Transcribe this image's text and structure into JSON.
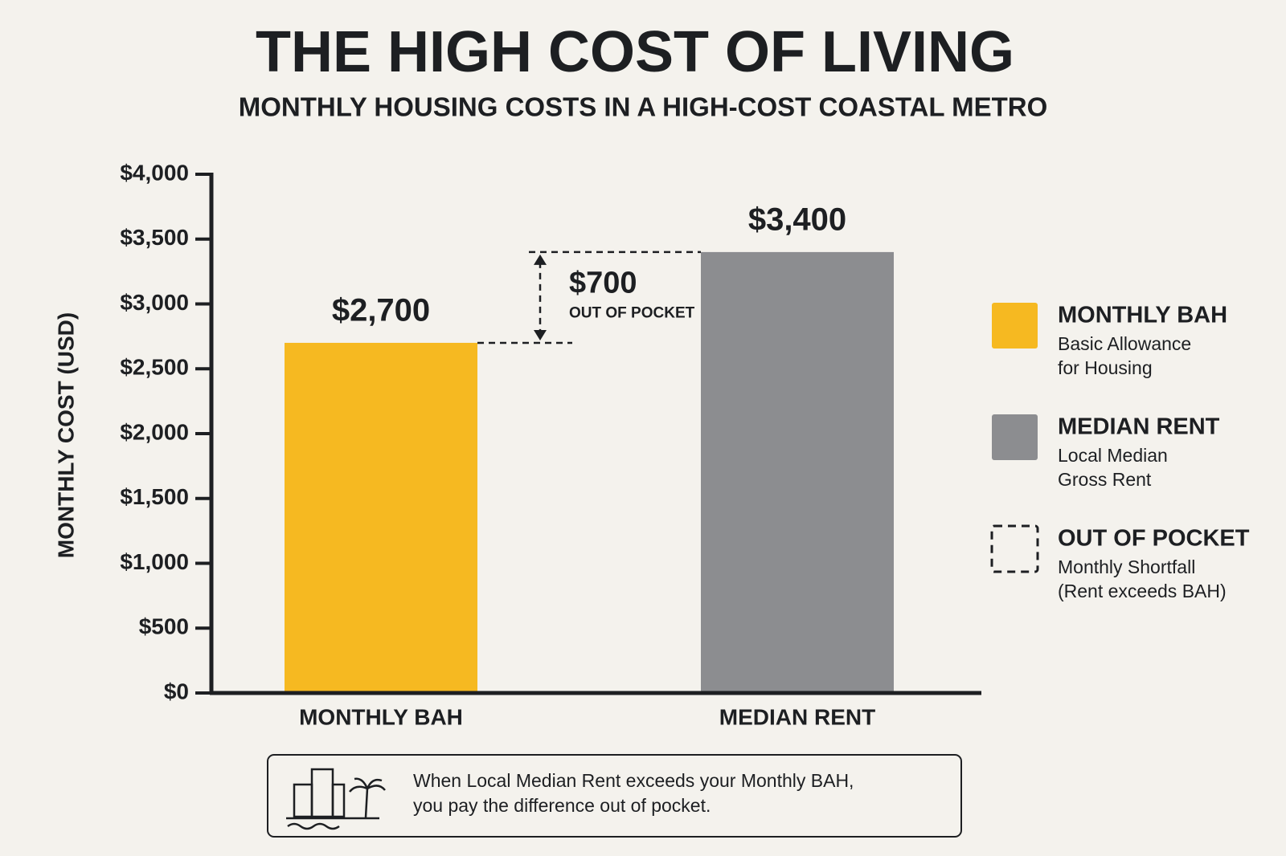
{
  "chart_data": {
    "type": "bar",
    "title": "THE HIGH COST OF LIVING",
    "subtitle": "MONTHLY HOUSING COSTS IN A HIGH-COST COASTAL METRO",
    "y_label": "MONTHLY COST (USD)",
    "categories": [
      "MONTHLY BAH",
      "MEDIAN RENT"
    ],
    "values": [
      2700,
      3400
    ],
    "value_labels": [
      "$2,700",
      "$3,400"
    ],
    "colors": [
      "#f6b921",
      "#8c8d90"
    ],
    "ylim": [
      0,
      4000
    ],
    "yticks": [
      {
        "value": 0,
        "label": "$0"
      },
      {
        "value": 500,
        "label": "$500"
      },
      {
        "value": 1000,
        "label": "$1,000"
      },
      {
        "value": 1500,
        "label": "$1,500"
      },
      {
        "value": 2000,
        "label": "$2,000"
      },
      {
        "value": 2500,
        "label": "$2,500"
      },
      {
        "value": 3000,
        "label": "$3,000"
      },
      {
        "value": 3500,
        "label": "$3,500"
      },
      {
        "value": 4000,
        "label": "$4,000"
      }
    ],
    "gap": {
      "value": 700,
      "label": "$700",
      "note": "OUT OF POCKET"
    },
    "legend": [
      {
        "name": "MONTHLY BAH",
        "lines": [
          "Basic Allowance",
          "for Housing"
        ],
        "color": "#f6b921"
      },
      {
        "name": "MEDIAN RENT",
        "lines": [
          "Local Median",
          "Gross Rent"
        ],
        "color": "#8c8d90"
      },
      {
        "name": "OUT OF POCKET",
        "lines": [
          "Monthly Shortfall",
          "(Rent exceeds BAH)"
        ],
        "style": "dashed"
      }
    ],
    "note": [
      "When Local Median Rent exceeds your Monthly BAH,",
      "you pay the difference out of pocket."
    ]
  }
}
